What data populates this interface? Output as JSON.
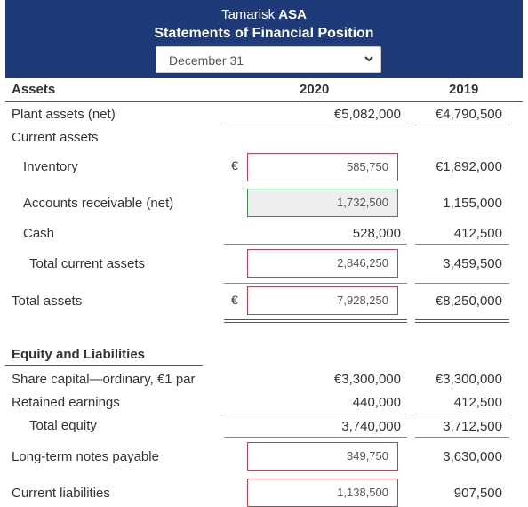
{
  "header": {
    "company_name": "Tamarisk",
    "company_suffix": "ASA",
    "statement_title": "Statements of Financial Position",
    "date_select": {
      "value": "December 31"
    }
  },
  "columns": {
    "section_label": "Assets",
    "year_current": "2020",
    "year_prior": "2019"
  },
  "currency_symbol": "€",
  "assets": {
    "plant_assets": {
      "label": "Plant assets (net)",
      "current": "€5,082,000",
      "prior": "€4,790,500"
    },
    "current_assets_heading": "Current assets",
    "inventory": {
      "label": "Inventory",
      "input_value": "585,750",
      "prior": "€1,892,000"
    },
    "accounts_receivable": {
      "label": "Accounts receivable (net)",
      "input_value": "1,732,500",
      "prior": "1,155,000"
    },
    "cash": {
      "label": "Cash",
      "current": "528,000",
      "prior": "412,500"
    },
    "total_current_assets": {
      "label": "Total current assets",
      "input_value": "2,846,250",
      "prior": "3,459,500"
    },
    "total_assets": {
      "label": "Total assets",
      "input_value": "7,928,250",
      "prior": "€8,250,000"
    }
  },
  "equity_liabilities": {
    "heading": "Equity and Liabilities",
    "share_capital": {
      "label": "Share capital—ordinary, €1 par",
      "current": "€3,300,000",
      "prior": "€3,300,000"
    },
    "retained_earnings": {
      "label": "Retained earnings",
      "current": "440,000",
      "prior": "412,500"
    },
    "total_equity": {
      "label": "Total equity",
      "current": "3,740,000",
      "prior": "3,712,500"
    },
    "long_term_notes": {
      "label": "Long-term notes payable",
      "input_value": "349,750",
      "prior": "3,630,000"
    },
    "current_liabilities": {
      "label": "Current liabilities",
      "input_value": "1,138,500",
      "prior": "907,500"
    }
  }
}
